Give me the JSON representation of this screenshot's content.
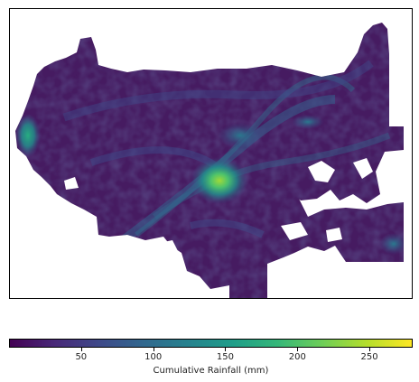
{
  "colormap": {
    "name": "viridis",
    "min_value": 0,
    "max_value": 280,
    "stops": [
      "#440154",
      "#482878",
      "#3e4989",
      "#31688e",
      "#26828e",
      "#1f9e89",
      "#35b779",
      "#6ece58",
      "#b5de2b",
      "#fde725"
    ]
  },
  "colorbar": {
    "label": "Cumulative Rainfall (mm)",
    "ticks": [
      {
        "value": 50,
        "label": "50"
      },
      {
        "value": 100,
        "label": "100"
      },
      {
        "value": 150,
        "label": "150"
      },
      {
        "value": 200,
        "label": "200"
      },
      {
        "value": 250,
        "label": "250"
      }
    ]
  },
  "map": {
    "background_color": "#ffffff",
    "dominant_color": "#441a5e",
    "hotspots": [
      {
        "name": "central-high-rainfall",
        "value": 180
      },
      {
        "name": "west-coast-rainfall",
        "value": 130
      },
      {
        "name": "southeast-corner-rainfall",
        "value": 110
      }
    ]
  }
}
